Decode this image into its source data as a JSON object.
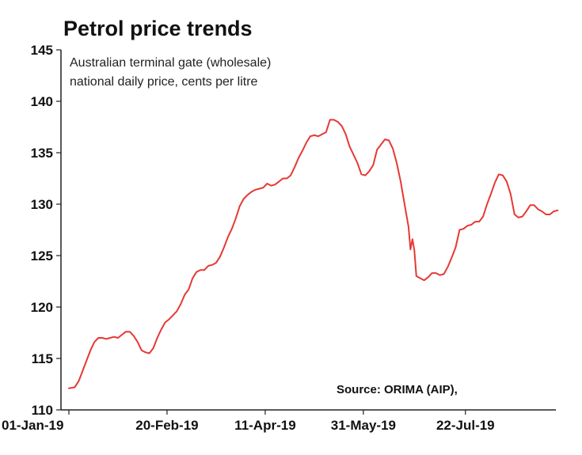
{
  "chart_data": {
    "type": "line",
    "title": "Petrol price trends",
    "subtitle_lines": [
      "Australian terminal gate (wholesale)",
      "national daily price, cents per litre"
    ],
    "source": "Source: ORIMA (AIP),",
    "xlabel": "",
    "ylabel": "",
    "x_ticks": [
      "01-Jan-19",
      "20-Feb-19",
      "11-Apr-19",
      "31-May-19",
      "22-Jul-19"
    ],
    "x_tick_days": [
      0,
      50,
      100,
      150,
      202
    ],
    "y_ticks": [
      110,
      115,
      120,
      125,
      130,
      135,
      140,
      145
    ],
    "ylim": [
      110,
      145
    ],
    "xlim": [
      0,
      240
    ],
    "grid": false,
    "colors": {
      "line": "#e53935",
      "axis": "#222222",
      "text": "#111111"
    },
    "series": [
      {
        "name": "Terminal gate price",
        "color": "#e53935",
        "points": [
          [
            0,
            112.1
          ],
          [
            3,
            112.2
          ],
          [
            5,
            112.8
          ],
          [
            7,
            113.8
          ],
          [
            9,
            114.8
          ],
          [
            11,
            115.8
          ],
          [
            13,
            116.6
          ],
          [
            15,
            117.0
          ],
          [
            17,
            117.0
          ],
          [
            19,
            116.9
          ],
          [
            21,
            117.0
          ],
          [
            23,
            117.1
          ],
          [
            25,
            117.0
          ],
          [
            27,
            117.3
          ],
          [
            29,
            117.6
          ],
          [
            31,
            117.6
          ],
          [
            33,
            117.2
          ],
          [
            35,
            116.6
          ],
          [
            37,
            115.8
          ],
          [
            39,
            115.6
          ],
          [
            41,
            115.5
          ],
          [
            43,
            116.0
          ],
          [
            45,
            117.0
          ],
          [
            47,
            117.8
          ],
          [
            49,
            118.5
          ],
          [
            51,
            118.8
          ],
          [
            53,
            119.2
          ],
          [
            55,
            119.6
          ],
          [
            57,
            120.3
          ],
          [
            59,
            121.2
          ],
          [
            61,
            121.7
          ],
          [
            63,
            122.8
          ],
          [
            65,
            123.4
          ],
          [
            67,
            123.6
          ],
          [
            69,
            123.6
          ],
          [
            71,
            124.0
          ],
          [
            73,
            124.1
          ],
          [
            75,
            124.3
          ],
          [
            77,
            124.9
          ],
          [
            79,
            125.8
          ],
          [
            81,
            126.8
          ],
          [
            83,
            127.6
          ],
          [
            85,
            128.6
          ],
          [
            87,
            129.8
          ],
          [
            89,
            130.5
          ],
          [
            91,
            130.9
          ],
          [
            93,
            131.2
          ],
          [
            95,
            131.4
          ],
          [
            97,
            131.5
          ],
          [
            99,
            131.6
          ],
          [
            101,
            132.0
          ],
          [
            103,
            131.8
          ],
          [
            105,
            131.9
          ],
          [
            107,
            132.2
          ],
          [
            109,
            132.5
          ],
          [
            111,
            132.5
          ],
          [
            113,
            132.8
          ],
          [
            115,
            133.6
          ],
          [
            117,
            134.5
          ],
          [
            119,
            135.2
          ],
          [
            121,
            136.0
          ],
          [
            123,
            136.6
          ],
          [
            125,
            136.7
          ],
          [
            127,
            136.6
          ],
          [
            129,
            136.8
          ],
          [
            131,
            137.0
          ],
          [
            133,
            138.2
          ],
          [
            135,
            138.2
          ],
          [
            137,
            138.0
          ],
          [
            139,
            137.6
          ],
          [
            141,
            136.8
          ],
          [
            143,
            135.6
          ],
          [
            145,
            134.8
          ],
          [
            147,
            134.0
          ],
          [
            149,
            132.9
          ],
          [
            151,
            132.8
          ],
          [
            153,
            133.2
          ],
          [
            155,
            133.8
          ],
          [
            157,
            135.3
          ],
          [
            159,
            135.8
          ],
          [
            161,
            136.3
          ],
          [
            163,
            136.2
          ],
          [
            165,
            135.4
          ],
          [
            167,
            134.0
          ],
          [
            169,
            132.2
          ],
          [
            171,
            130.0
          ],
          [
            173,
            127.8
          ],
          [
            174,
            125.6
          ],
          [
            175,
            126.6
          ],
          [
            176,
            125.5
          ],
          [
            177,
            123.0
          ],
          [
            179,
            122.8
          ],
          [
            181,
            122.6
          ],
          [
            183,
            122.9
          ],
          [
            185,
            123.3
          ],
          [
            187,
            123.3
          ],
          [
            189,
            123.1
          ],
          [
            191,
            123.2
          ],
          [
            193,
            123.9
          ],
          [
            195,
            124.8
          ],
          [
            197,
            125.8
          ],
          [
            199,
            127.5
          ],
          [
            201,
            127.6
          ],
          [
            203,
            127.9
          ],
          [
            205,
            128.0
          ],
          [
            207,
            128.3
          ],
          [
            209,
            128.3
          ],
          [
            211,
            128.8
          ],
          [
            213,
            130.0
          ],
          [
            215,
            131.0
          ],
          [
            217,
            132.1
          ],
          [
            219,
            132.9
          ],
          [
            221,
            132.8
          ],
          [
            223,
            132.2
          ],
          [
            225,
            131.0
          ],
          [
            227,
            129.0
          ],
          [
            229,
            128.7
          ],
          [
            231,
            128.8
          ],
          [
            233,
            129.3
          ],
          [
            235,
            129.9
          ],
          [
            237,
            129.9
          ],
          [
            239,
            129.5
          ],
          [
            241,
            129.3
          ],
          [
            243,
            129.0
          ],
          [
            245,
            129.0
          ],
          [
            247,
            129.3
          ],
          [
            249,
            129.4
          ]
        ]
      }
    ]
  }
}
